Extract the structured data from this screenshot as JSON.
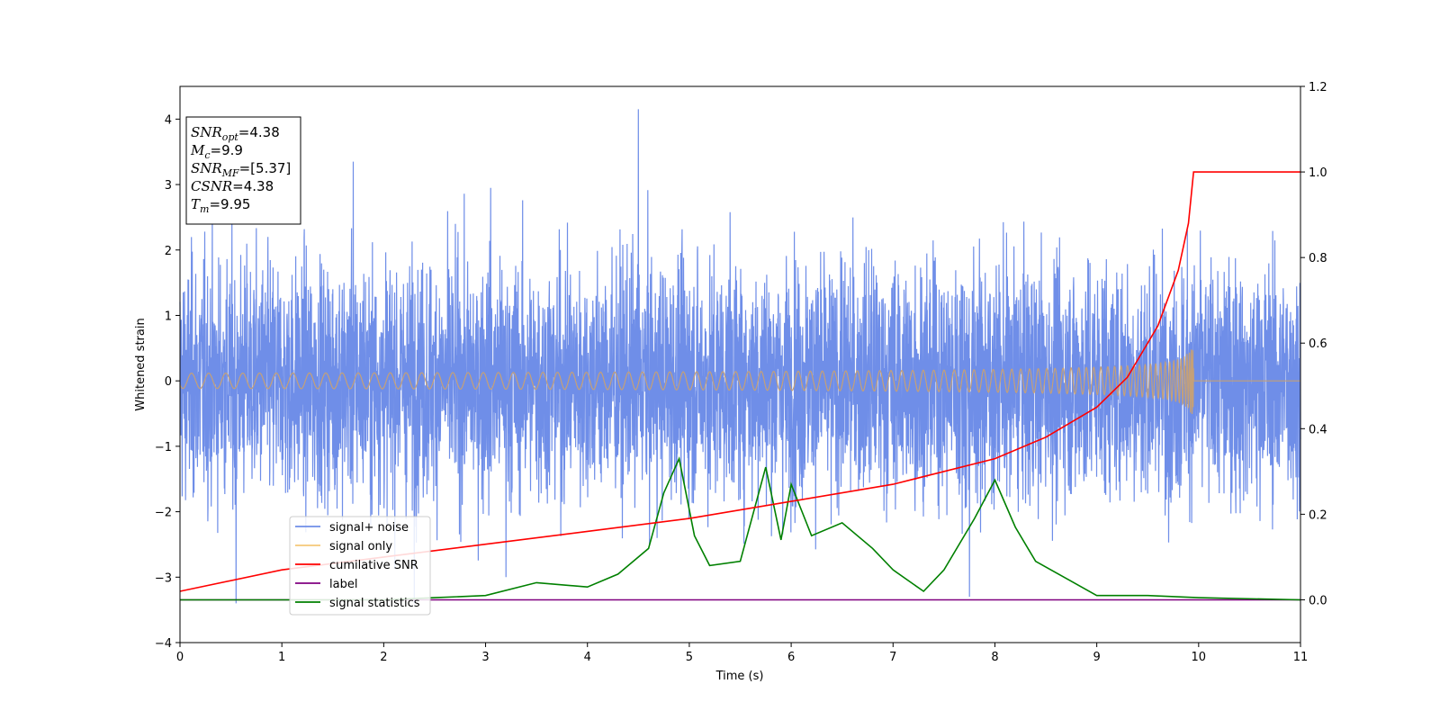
{
  "chart_data": {
    "type": "line",
    "xlabel": "Time (s)",
    "ylabel_left": "Whitened strain",
    "xlim": [
      0,
      11
    ],
    "ylim_left": [
      -4,
      4.5
    ],
    "ylim_right": [
      -0.1,
      1.2
    ],
    "x_ticks": [
      0,
      1,
      2,
      3,
      4,
      5,
      6,
      7,
      8,
      9,
      10,
      11
    ],
    "y_ticks_left": [
      -4,
      -3,
      -2,
      -1,
      0,
      1,
      2,
      3,
      4
    ],
    "y_ticks_right": [
      0.0,
      0.2,
      0.4,
      0.6,
      0.8,
      1.0,
      1.2
    ],
    "grid": false,
    "legend_position": "lower-left",
    "info_box": {
      "position": "top-left",
      "lines": [
        {
          "sym": "SNR",
          "sub": "opt",
          "value": "=4.38"
        },
        {
          "sym": "M",
          "sub": "c",
          "value": "=9.9"
        },
        {
          "sym": "SNR",
          "sub": "MF",
          "value": "=[5.37]"
        },
        {
          "sym": "CSNR",
          "sub": "",
          "value": "=4.38"
        },
        {
          "sym": "T",
          "sub": "m",
          "value": "=9.95"
        }
      ]
    },
    "series": [
      {
        "name": "signal+ noise",
        "axis": "left",
        "color": "#6f8ee8",
        "description_kind": "noise",
        "approx_range": [
          -3.4,
          4.2
        ],
        "notable_peaks": [
          [
            1.7,
            3.35
          ],
          [
            3.05,
            2.95
          ],
          [
            4.5,
            4.15
          ],
          [
            2.3,
            -3.6
          ],
          [
            0.55,
            -3.4
          ],
          [
            7.75,
            -3.3
          ],
          [
            3.2,
            -3.0
          ]
        ]
      },
      {
        "name": "signal only",
        "axis": "left",
        "color": "#f5c878",
        "description_kind": "chirp",
        "merger_time": 9.95,
        "peak_amplitude": 0.55
      },
      {
        "name": "cumilative SNR",
        "axis": "right",
        "color": "#ff0000",
        "x": [
          0,
          1,
          2,
          3,
          4,
          5,
          6,
          7,
          8,
          8.5,
          9,
          9.3,
          9.6,
          9.8,
          9.9,
          9.95,
          11
        ],
        "values": [
          0.02,
          0.07,
          0.1,
          0.13,
          0.16,
          0.19,
          0.23,
          0.27,
          0.33,
          0.38,
          0.45,
          0.52,
          0.64,
          0.77,
          0.88,
          1.0,
          1.0
        ]
      },
      {
        "name": "label",
        "axis": "right",
        "color": "#800080",
        "x": [
          0,
          11
        ],
        "values": [
          0.0,
          0.0
        ]
      },
      {
        "name": "signal statistics",
        "axis": "right",
        "color": "#008000",
        "x": [
          0,
          1,
          2,
          2.5,
          3,
          3.5,
          4,
          4.3,
          4.6,
          4.75,
          4.9,
          5.05,
          5.2,
          5.5,
          5.75,
          5.9,
          6.0,
          6.2,
          6.5,
          6.8,
          7.0,
          7.3,
          7.5,
          7.8,
          8.0,
          8.2,
          8.4,
          8.7,
          9.0,
          9.5,
          10,
          11
        ],
        "values": [
          0.0,
          0.0,
          0.0,
          0.005,
          0.01,
          0.04,
          0.03,
          0.06,
          0.12,
          0.25,
          0.33,
          0.15,
          0.08,
          0.09,
          0.31,
          0.14,
          0.27,
          0.15,
          0.18,
          0.12,
          0.07,
          0.02,
          0.07,
          0.19,
          0.28,
          0.17,
          0.09,
          0.05,
          0.01,
          0.01,
          0.005,
          0.0
        ]
      }
    ]
  }
}
